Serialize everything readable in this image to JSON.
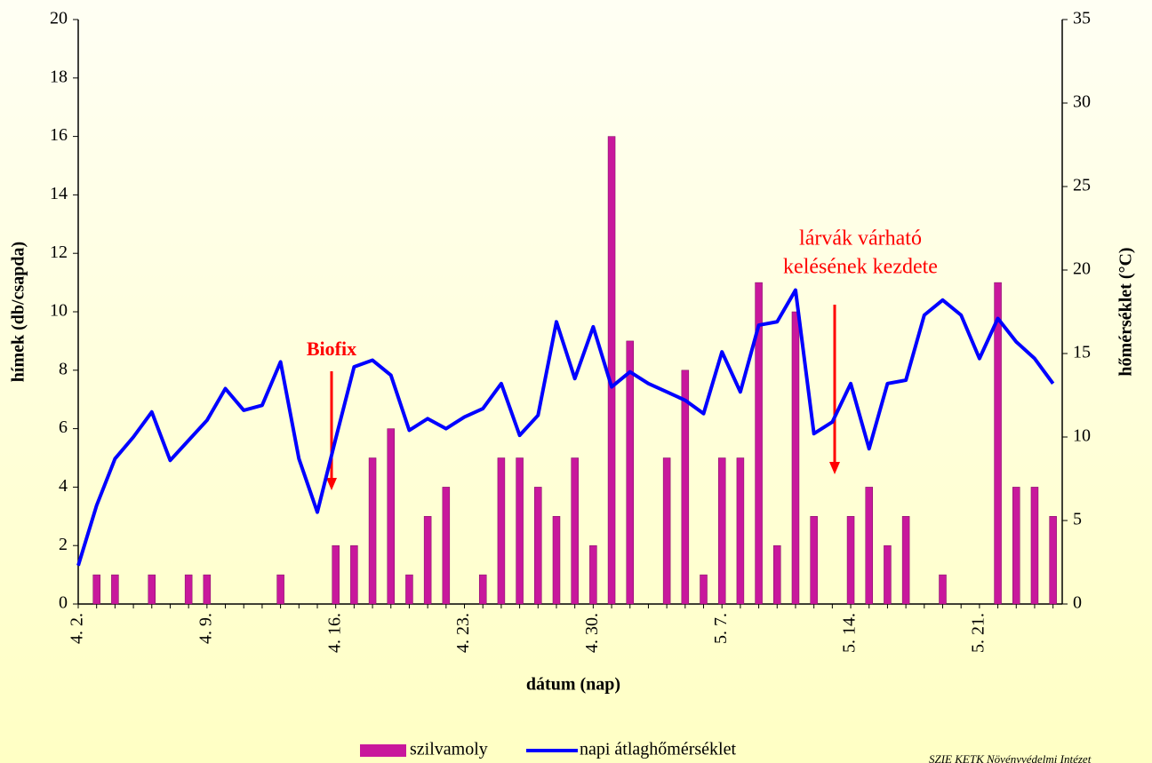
{
  "chart_data": {
    "type": "bar",
    "x_label": "dátum (nap)",
    "y_label": "hímek  (db/csapda)",
    "y2_label": "hőmérséklet (°C)",
    "categories": [
      "4. 2.",
      null,
      null,
      null,
      null,
      null,
      null,
      "4. 9.",
      null,
      null,
      null,
      null,
      null,
      null,
      "4. 16.",
      null,
      null,
      null,
      null,
      null,
      null,
      "4. 23.",
      null,
      null,
      null,
      null,
      null,
      null,
      "4. 30.",
      null,
      null,
      null,
      null,
      null,
      null,
      "5. 7.",
      null,
      null,
      null,
      null,
      null,
      null,
      "5. 14.",
      null,
      null,
      null,
      null,
      null,
      null,
      "5. 21.",
      null,
      null,
      null,
      null
    ],
    "series": [
      {
        "name": "szilvamoly",
        "type": "bar",
        "color": "#c8189c",
        "values": [
          0,
          1,
          1,
          0,
          1,
          0,
          1,
          1,
          0,
          0,
          0,
          1,
          0,
          0,
          2,
          2,
          5,
          6,
          1,
          3,
          4,
          0,
          1,
          5,
          5,
          4,
          3,
          5,
          2,
          16,
          9,
          0,
          5,
          8,
          1,
          5,
          5,
          11,
          2,
          10,
          3,
          0,
          3,
          4,
          2,
          3,
          0,
          1,
          0,
          0,
          11,
          4,
          4,
          3
        ]
      },
      {
        "name": "napi átlaghőmérséklet",
        "type": "line",
        "axis": "y2",
        "color": "#0000ff",
        "values": [
          2.3,
          5.9,
          8.7,
          10.0,
          11.5,
          8.6,
          9.8,
          11.0,
          12.9,
          11.6,
          11.9,
          14.5,
          8.7,
          5.5,
          9.9,
          14.2,
          14.6,
          13.7,
          10.4,
          11.1,
          10.5,
          11.2,
          11.7,
          13.2,
          10.1,
          11.3,
          16.9,
          13.5,
          16.6,
          13.0,
          13.9,
          13.2,
          12.7,
          12.2,
          11.4,
          15.1,
          12.7,
          16.7,
          16.9,
          18.8,
          10.2,
          10.9,
          13.2,
          9.3,
          13.2,
          13.4,
          17.3,
          18.2,
          17.3,
          14.7,
          17.1,
          15.7,
          14.7,
          13.2
        ]
      }
    ],
    "ylim": [
      0,
      20
    ],
    "yticks": [
      0,
      2,
      4,
      6,
      8,
      10,
      12,
      14,
      16,
      18,
      20
    ],
    "y2lim": [
      0,
      35
    ],
    "y2ticks": [
      0,
      5,
      10,
      15,
      20,
      25,
      30,
      35
    ],
    "annotations": [
      {
        "lines": [
          "Biofix"
        ],
        "color": "#ff0000"
      },
      {
        "lines": [
          "lárvák várható",
          "kelésének kezdete"
        ],
        "color": "#ff0000"
      }
    ],
    "credit": "SZIE KETK Növényvédelmi Intézet"
  }
}
